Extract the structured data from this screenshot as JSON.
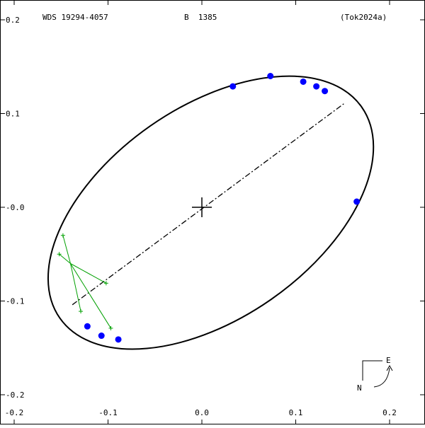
{
  "header": {
    "wds_id": "WDS 19294-4057",
    "discoverer": "B  1385",
    "reference": "(Tok2024a)"
  },
  "compass": {
    "east_label": "E",
    "north_label": "N"
  },
  "colors": {
    "background": "#ffffff",
    "axes": "#000000",
    "orbit": "#000000",
    "observations": "#0000ff",
    "residuals": "#00a000"
  },
  "chart_data": {
    "type": "scatter",
    "title": "",
    "xlabel": "",
    "ylabel": "",
    "xlim": [
      -0.2,
      0.23
    ],
    "ylim": [
      -0.2,
      0.22
    ],
    "x_ticks": [
      -0.2,
      -0.1,
      0.0,
      0.1,
      0.2
    ],
    "x_tick_labels": [
      "-0.2",
      "-0.1",
      "0.0",
      "0.1",
      "0.2"
    ],
    "y_ticks": [
      -0.2,
      -0.1,
      0.0,
      0.1,
      0.2
    ],
    "y_tick_labels": [
      "-0.2",
      "-0.1",
      "-0.0",
      "0.1",
      "0.2"
    ],
    "primary_star": [
      0.0,
      0.0
    ],
    "orbit_ellipse": {
      "center": [
        0.0095,
        -0.0057
      ],
      "semi_major": 0.1963,
      "semi_minor": 0.1127,
      "rotation_deg": 35
    },
    "line_of_nodes": [
      [
        -0.138,
        -0.104
      ],
      [
        0.152,
        0.111
      ]
    ],
    "observations": [
      {
        "x": 0.033,
        "y": 0.129
      },
      {
        "x": 0.073,
        "y": 0.14
      },
      {
        "x": 0.108,
        "y": 0.134
      },
      {
        "x": 0.122,
        "y": 0.129
      },
      {
        "x": 0.131,
        "y": 0.124
      },
      {
        "x": 0.165,
        "y": 0.006
      },
      {
        "x": -0.122,
        "y": -0.127
      },
      {
        "x": -0.107,
        "y": -0.137
      },
      {
        "x": -0.089,
        "y": -0.141
      }
    ],
    "residual_origin": [
      -0.14,
      -0.06
    ],
    "residual_points": [
      {
        "x": -0.148,
        "y": -0.03
      },
      {
        "x": -0.152,
        "y": -0.05
      },
      {
        "x": -0.102,
        "y": -0.081
      },
      {
        "x": -0.129,
        "y": -0.111
      },
      {
        "x": -0.097,
        "y": -0.129
      }
    ]
  }
}
